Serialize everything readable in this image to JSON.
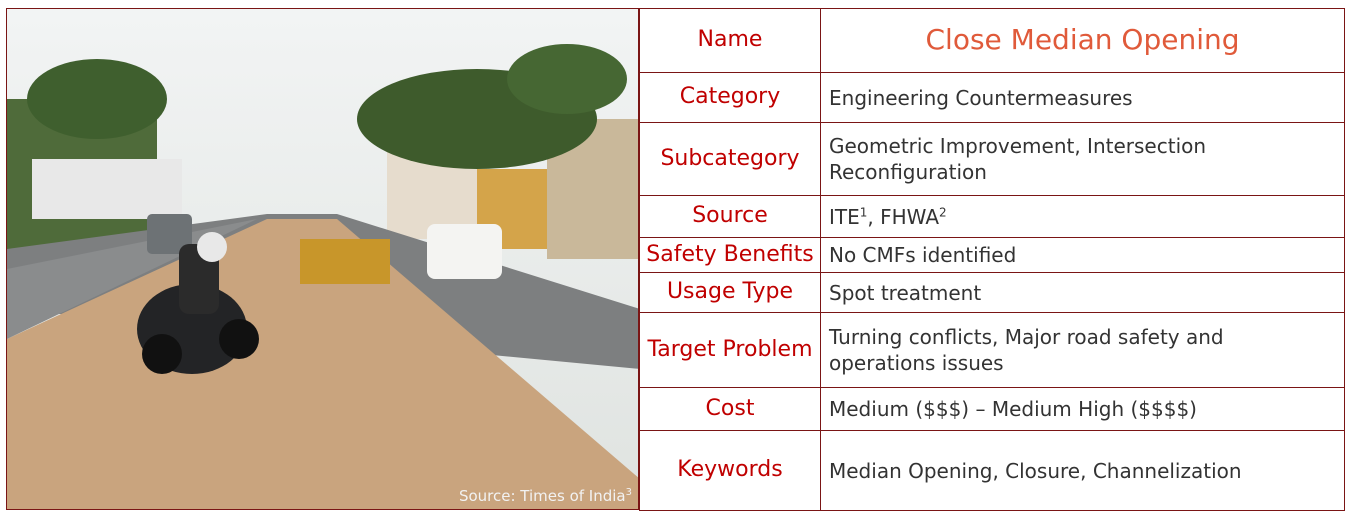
{
  "photo": {
    "caption": "Source: Times of India",
    "caption_note": "3"
  },
  "table": {
    "rows": [
      {
        "label": "Name",
        "value": "Close Median Opening"
      },
      {
        "label": "Category",
        "value": "Engineering Countermeasures"
      },
      {
        "label": "Subcategory",
        "value": "Geometric Improvement, Intersection Reconfiguration"
      },
      {
        "label": "Source",
        "value": [
          "ITE",
          "1",
          ", FHWA",
          "2"
        ]
      },
      {
        "label": "Safety Benefits",
        "value": "No CMFs identified"
      },
      {
        "label": "Usage Type",
        "value": "Spot treatment"
      },
      {
        "label": "Target Problem",
        "value": "Turning conflicts, Major road safety and operations issues"
      },
      {
        "label": "Cost",
        "value": "Medium ($$$) – Medium High ($$$$)"
      },
      {
        "label": "Keywords",
        "value": "Median Opening, Closure, Channelization"
      }
    ]
  }
}
